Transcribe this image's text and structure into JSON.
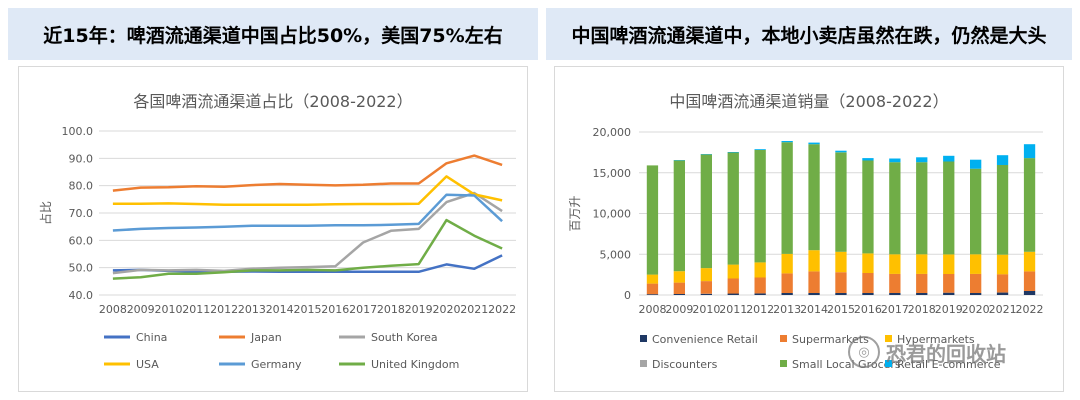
{
  "header": {
    "left_title": "近15年：啤酒流通渠道中国占比50%，美国75%左右",
    "right_title": "中国啤酒流通渠道中，本地小卖店虽然在跌，仍然是大头"
  },
  "watermark": {
    "text": "恐君的回收站"
  },
  "chart_data": [
    {
      "type": "line",
      "title": "各国啤酒流通渠道占比（2008-2022）",
      "ylabel": "占比",
      "ylim": [
        40,
        100
      ],
      "yticks": [
        "40.0",
        "50.0",
        "60.0",
        "70.0",
        "80.0",
        "90.0",
        "100.0"
      ],
      "grid": true,
      "legend_position": "bottom",
      "categories": [
        "2008",
        "2009",
        "2010",
        "2011",
        "2012",
        "2013",
        "2014",
        "2015",
        "2016",
        "2017",
        "2018",
        "2019",
        "2020",
        "2021",
        "2022"
      ],
      "series": [
        {
          "name": "China",
          "color": "#4472c4",
          "values": [
            49.0,
            49.2,
            48.8,
            48.6,
            48.5,
            48.6,
            48.5,
            48.5,
            48.5,
            48.5,
            48.5,
            48.5,
            51.2,
            49.6,
            54.5
          ]
        },
        {
          "name": "Japan",
          "color": "#ed7d31",
          "values": [
            78.2,
            79.3,
            79.4,
            79.8,
            79.6,
            80.2,
            80.6,
            80.3,
            80.1,
            80.3,
            80.8,
            80.8,
            88.2,
            91.0,
            87.6
          ]
        },
        {
          "name": "South Korea",
          "color": "#a5a5a5",
          "values": [
            48.0,
            49.2,
            49.0,
            49.2,
            48.8,
            49.6,
            50.0,
            50.2,
            50.5,
            59.2,
            63.5,
            64.2,
            74.0,
            77.3,
            70.7
          ]
        },
        {
          "name": "USA",
          "color": "#ffc000",
          "values": [
            73.4,
            73.4,
            73.5,
            73.3,
            73.0,
            73.0,
            73.0,
            73.0,
            73.2,
            73.3,
            73.3,
            73.4,
            83.4,
            76.8,
            74.6
          ]
        },
        {
          "name": "Germany",
          "color": "#5b9bd5",
          "values": [
            63.6,
            64.2,
            64.5,
            64.7,
            65.0,
            65.3,
            65.3,
            65.3,
            65.5,
            65.5,
            65.7,
            66.0,
            76.7,
            76.4,
            67.0
          ]
        },
        {
          "name": "United Kingdom",
          "color": "#70ad47",
          "values": [
            46.0,
            46.5,
            47.8,
            47.8,
            48.3,
            49.0,
            49.0,
            49.2,
            49.0,
            50.0,
            50.7,
            51.3,
            67.4,
            61.7,
            57.0
          ]
        }
      ]
    },
    {
      "type": "bar",
      "stacked": true,
      "title": "中国啤酒流通渠道销量（2008-2022）",
      "ylabel": "百万升",
      "ylim": [
        0,
        20000
      ],
      "yticks": [
        "0",
        "5,000",
        "10,000",
        "15,000",
        "20,000"
      ],
      "grid": true,
      "legend_position": "bottom",
      "categories": [
        "2008",
        "2009",
        "2010",
        "2011",
        "2012",
        "2013",
        "2014",
        "2015",
        "2016",
        "2017",
        "2018",
        "2019",
        "2020",
        "2021",
        "2022"
      ],
      "series": [
        {
          "name": "Convenience Retail",
          "color": "#1f3864",
          "values": [
            100,
            120,
            150,
            180,
            200,
            250,
            250,
            250,
            250,
            250,
            250,
            280,
            250,
            300,
            500
          ]
        },
        {
          "name": "Supermarkets",
          "color": "#ed7d31",
          "values": [
            1300,
            1400,
            1550,
            1850,
            1950,
            2400,
            2650,
            2550,
            2450,
            2350,
            2350,
            2300,
            2350,
            2250,
            2400
          ]
        },
        {
          "name": "Hypermarkets",
          "color": "#ffc000",
          "values": [
            1100,
            1400,
            1600,
            1700,
            1850,
            2400,
            2600,
            2500,
            2400,
            2400,
            2400,
            2400,
            2400,
            2400,
            2400
          ]
        },
        {
          "name": "Discounters",
          "color": "#a5a5a5",
          "values": [
            0,
            0,
            0,
            0,
            0,
            0,
            0,
            0,
            0,
            0,
            0,
            0,
            0,
            0,
            0
          ]
        },
        {
          "name": "Small Local Grocers",
          "color": "#70ad47",
          "values": [
            13400,
            13600,
            13950,
            13750,
            13800,
            13700,
            13000,
            12200,
            11400,
            11300,
            11300,
            11400,
            10500,
            11000,
            11500
          ]
        },
        {
          "name": "Retail E-commerce",
          "color": "#00b0f0",
          "values": [
            0,
            50,
            50,
            60,
            100,
            150,
            200,
            200,
            300,
            450,
            600,
            700,
            1100,
            1200,
            1700
          ]
        }
      ]
    }
  ]
}
